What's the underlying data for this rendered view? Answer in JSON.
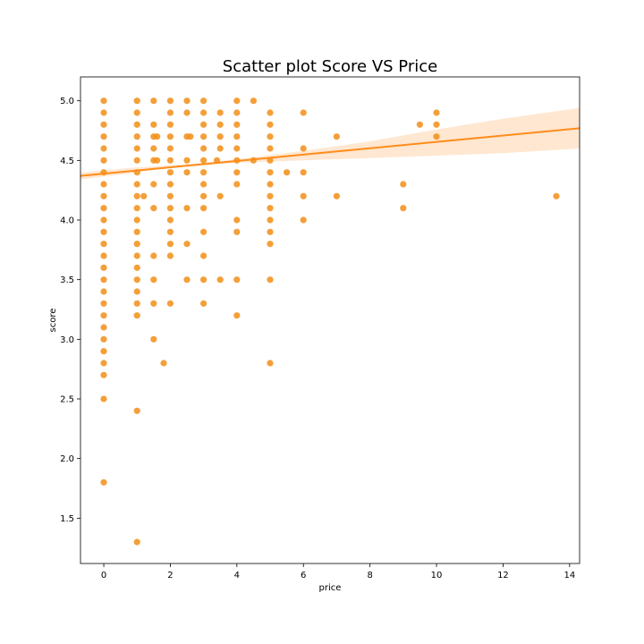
{
  "chart_data": {
    "type": "scatter",
    "title": "Scatter plot Score VS Price",
    "xlabel": "price",
    "ylabel": "score",
    "xlim": [
      -0.7,
      14.3
    ],
    "ylim": [
      1.12,
      5.2
    ],
    "xticks": [
      0,
      2,
      4,
      6,
      8,
      10,
      12,
      14
    ],
    "yticks": [
      1.5,
      2.0,
      2.5,
      3.0,
      3.5,
      4.0,
      4.5,
      5.0
    ],
    "xtick_labels": [
      "0",
      "2",
      "4",
      "6",
      "8",
      "10",
      "12",
      "14"
    ],
    "ytick_labels": [
      "1.5",
      "2.0",
      "2.5",
      "3.0",
      "3.5",
      "4.0",
      "4.5",
      "5.0"
    ],
    "grid": false,
    "colors": {
      "points": "#f28e16",
      "line": "#ff8c1a",
      "band": "#ffe3c9"
    },
    "regression": {
      "x": [
        -0.7,
        14.3
      ],
      "y": [
        4.37,
        4.77
      ]
    },
    "confidence_band": {
      "x": [
        -0.7,
        1,
        2,
        3,
        4,
        6,
        8,
        10,
        12,
        14.3
      ],
      "lower": [
        4.34,
        4.4,
        4.44,
        4.46,
        4.48,
        4.5,
        4.52,
        4.54,
        4.56,
        4.6
      ],
      "upper": [
        4.4,
        4.44,
        4.46,
        4.48,
        4.51,
        4.58,
        4.66,
        4.76,
        4.85,
        4.94
      ]
    },
    "points": [
      [
        0,
        5.0
      ],
      [
        0,
        4.9
      ],
      [
        0,
        4.8
      ],
      [
        0,
        4.7
      ],
      [
        0,
        4.6
      ],
      [
        0,
        4.5
      ],
      [
        0,
        4.4
      ],
      [
        0,
        4.3
      ],
      [
        0,
        4.2
      ],
      [
        0,
        4.1
      ],
      [
        0,
        4.0
      ],
      [
        0,
        3.9
      ],
      [
        0,
        3.8
      ],
      [
        0,
        3.7
      ],
      [
        0,
        3.6
      ],
      [
        0,
        3.5
      ],
      [
        0,
        3.4
      ],
      [
        0,
        3.3
      ],
      [
        0,
        3.2
      ],
      [
        0,
        3.1
      ],
      [
        0,
        3.0
      ],
      [
        0,
        2.9
      ],
      [
        0,
        2.8
      ],
      [
        0,
        2.7
      ],
      [
        0,
        2.5
      ],
      [
        0,
        1.8
      ],
      [
        1,
        5.0
      ],
      [
        1,
        4.9
      ],
      [
        1,
        4.8
      ],
      [
        1,
        4.7
      ],
      [
        1,
        4.6
      ],
      [
        1,
        4.5
      ],
      [
        1,
        4.4
      ],
      [
        1,
        4.3
      ],
      [
        1,
        4.2
      ],
      [
        1,
        4.1
      ],
      [
        1,
        4.0
      ],
      [
        1,
        3.9
      ],
      [
        1,
        3.8
      ],
      [
        1,
        3.7
      ],
      [
        1,
        3.6
      ],
      [
        1,
        3.5
      ],
      [
        1,
        3.4
      ],
      [
        1,
        3.3
      ],
      [
        1,
        3.2
      ],
      [
        1,
        2.4
      ],
      [
        1,
        1.3
      ],
      [
        1.2,
        4.2
      ],
      [
        1.5,
        5.0
      ],
      [
        1.5,
        4.8
      ],
      [
        1.5,
        4.7
      ],
      [
        1.5,
        4.6
      ],
      [
        1.5,
        4.5
      ],
      [
        1.5,
        4.3
      ],
      [
        1.5,
        4.1
      ],
      [
        1.5,
        3.7
      ],
      [
        1.5,
        3.5
      ],
      [
        1.5,
        3.3
      ],
      [
        1.5,
        3.0
      ],
      [
        1.6,
        4.7
      ],
      [
        1.6,
        4.5
      ],
      [
        1.8,
        2.8
      ],
      [
        2,
        5.0
      ],
      [
        2,
        4.9
      ],
      [
        2,
        4.8
      ],
      [
        2,
        4.7
      ],
      [
        2,
        4.6
      ],
      [
        2,
        4.5
      ],
      [
        2,
        4.4
      ],
      [
        2,
        4.3
      ],
      [
        2,
        4.2
      ],
      [
        2,
        4.1
      ],
      [
        2,
        4.0
      ],
      [
        2,
        3.9
      ],
      [
        2,
        3.8
      ],
      [
        2,
        3.7
      ],
      [
        2,
        3.3
      ],
      [
        2.5,
        5.0
      ],
      [
        2.5,
        4.9
      ],
      [
        2.5,
        4.7
      ],
      [
        2.5,
        4.5
      ],
      [
        2.5,
        4.4
      ],
      [
        2.5,
        4.1
      ],
      [
        2.5,
        3.8
      ],
      [
        2.5,
        3.5
      ],
      [
        2.6,
        4.7
      ],
      [
        3,
        5.0
      ],
      [
        3,
        4.9
      ],
      [
        3,
        4.8
      ],
      [
        3,
        4.7
      ],
      [
        3,
        4.6
      ],
      [
        3,
        4.5
      ],
      [
        3,
        4.4
      ],
      [
        3,
        4.3
      ],
      [
        3,
        4.2
      ],
      [
        3,
        4.1
      ],
      [
        3,
        3.9
      ],
      [
        3,
        3.7
      ],
      [
        3,
        3.5
      ],
      [
        3,
        3.3
      ],
      [
        3.4,
        4.5
      ],
      [
        3.5,
        4.9
      ],
      [
        3.5,
        4.8
      ],
      [
        3.5,
        4.7
      ],
      [
        3.5,
        4.6
      ],
      [
        3.5,
        4.2
      ],
      [
        3.5,
        3.5
      ],
      [
        4,
        5.0
      ],
      [
        4,
        4.9
      ],
      [
        4,
        4.8
      ],
      [
        4,
        4.7
      ],
      [
        4,
        4.6
      ],
      [
        4,
        4.5
      ],
      [
        4,
        4.4
      ],
      [
        4,
        4.3
      ],
      [
        4,
        4.0
      ],
      [
        4,
        3.9
      ],
      [
        4,
        3.5
      ],
      [
        4,
        3.2
      ],
      [
        4.5,
        5.0
      ],
      [
        4.5,
        4.5
      ],
      [
        5,
        4.9
      ],
      [
        5,
        4.8
      ],
      [
        5,
        4.7
      ],
      [
        5,
        4.6
      ],
      [
        5,
        4.5
      ],
      [
        5,
        4.4
      ],
      [
        5,
        4.3
      ],
      [
        5,
        4.2
      ],
      [
        5,
        4.1
      ],
      [
        5,
        4.0
      ],
      [
        5,
        3.9
      ],
      [
        5,
        3.8
      ],
      [
        5,
        3.5
      ],
      [
        5,
        2.8
      ],
      [
        5.5,
        4.4
      ],
      [
        6,
        4.9
      ],
      [
        6,
        4.6
      ],
      [
        6,
        4.4
      ],
      [
        6,
        4.2
      ],
      [
        6,
        4.0
      ],
      [
        7,
        4.7
      ],
      [
        7,
        4.2
      ],
      [
        9,
        4.3
      ],
      [
        9,
        4.1
      ],
      [
        9.5,
        4.8
      ],
      [
        10,
        4.9
      ],
      [
        10,
        4.8
      ],
      [
        10,
        4.7
      ],
      [
        13.6,
        4.2
      ]
    ]
  }
}
